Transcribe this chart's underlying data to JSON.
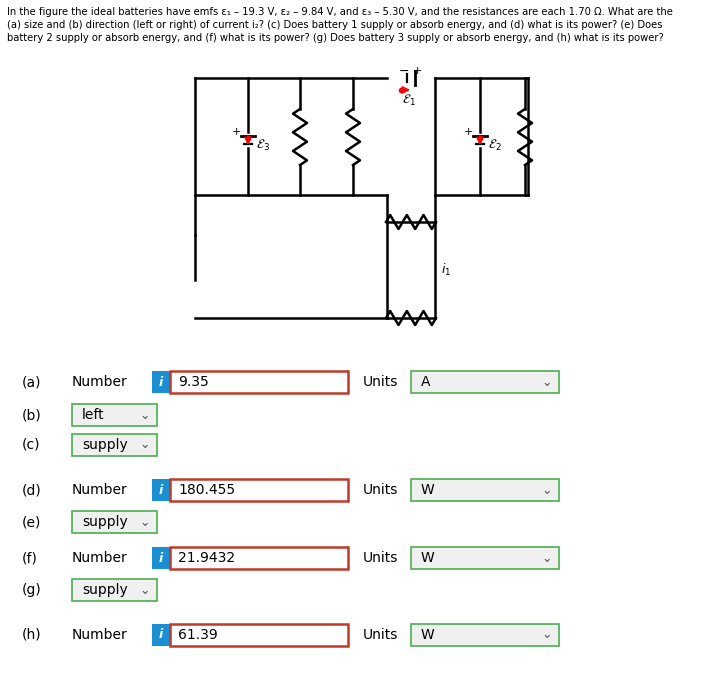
{
  "line1": "In the figure the ideal batteries have emfs ε₁ – 19.3 V, ε₂ – 9.84 V, and ε₃ – 5.30 V, and the resistances are each 1.70 Ω. What are the",
  "line2": "(a) size and (b) direction (left or right) of current i₂? (c) Does battery 1 supply or absorb energy, and (d) what is its power? (e) Does",
  "line3": "battery 2 supply or absorb energy, and (f) what is its power? (g) Does battery 3 supply or absorb energy, and (h) what is its power?",
  "rows": [
    {
      "label": "(a)",
      "type": "number_units",
      "prefix": "Number",
      "badge": "i",
      "value": "9.35",
      "units_label": "Units",
      "units_value": "A"
    },
    {
      "label": "(b)",
      "type": "dropdown",
      "value": "left"
    },
    {
      "label": "(c)",
      "type": "dropdown",
      "value": "supply"
    },
    {
      "label": "(d)",
      "type": "number_units",
      "prefix": "Number",
      "badge": "i",
      "value": "180.455",
      "units_label": "Units",
      "units_value": "W"
    },
    {
      "label": "(e)",
      "type": "dropdown",
      "value": "supply"
    },
    {
      "label": "(f)",
      "type": "number_units",
      "prefix": "Number",
      "badge": "i",
      "value": "21.9432",
      "units_label": "Units",
      "units_value": "W"
    },
    {
      "label": "(g)",
      "type": "dropdown",
      "value": "supply"
    },
    {
      "label": "(h)",
      "type": "number_units",
      "prefix": "Number",
      "badge": "i",
      "value": "61.39",
      "units_label": "Units",
      "units_value": "W"
    }
  ],
  "bg_color": "#ffffff",
  "text_color": "#000000",
  "badge_color": "#1a8fd1",
  "input_border_color": "#c0392b",
  "dropdown_border_color": "#4caf50",
  "input_bg": "#ffffff",
  "dropdown_bg": "#f0f0f0",
  "row_y_positions": [
    382,
    415,
    445,
    490,
    522,
    558,
    590,
    635
  ]
}
